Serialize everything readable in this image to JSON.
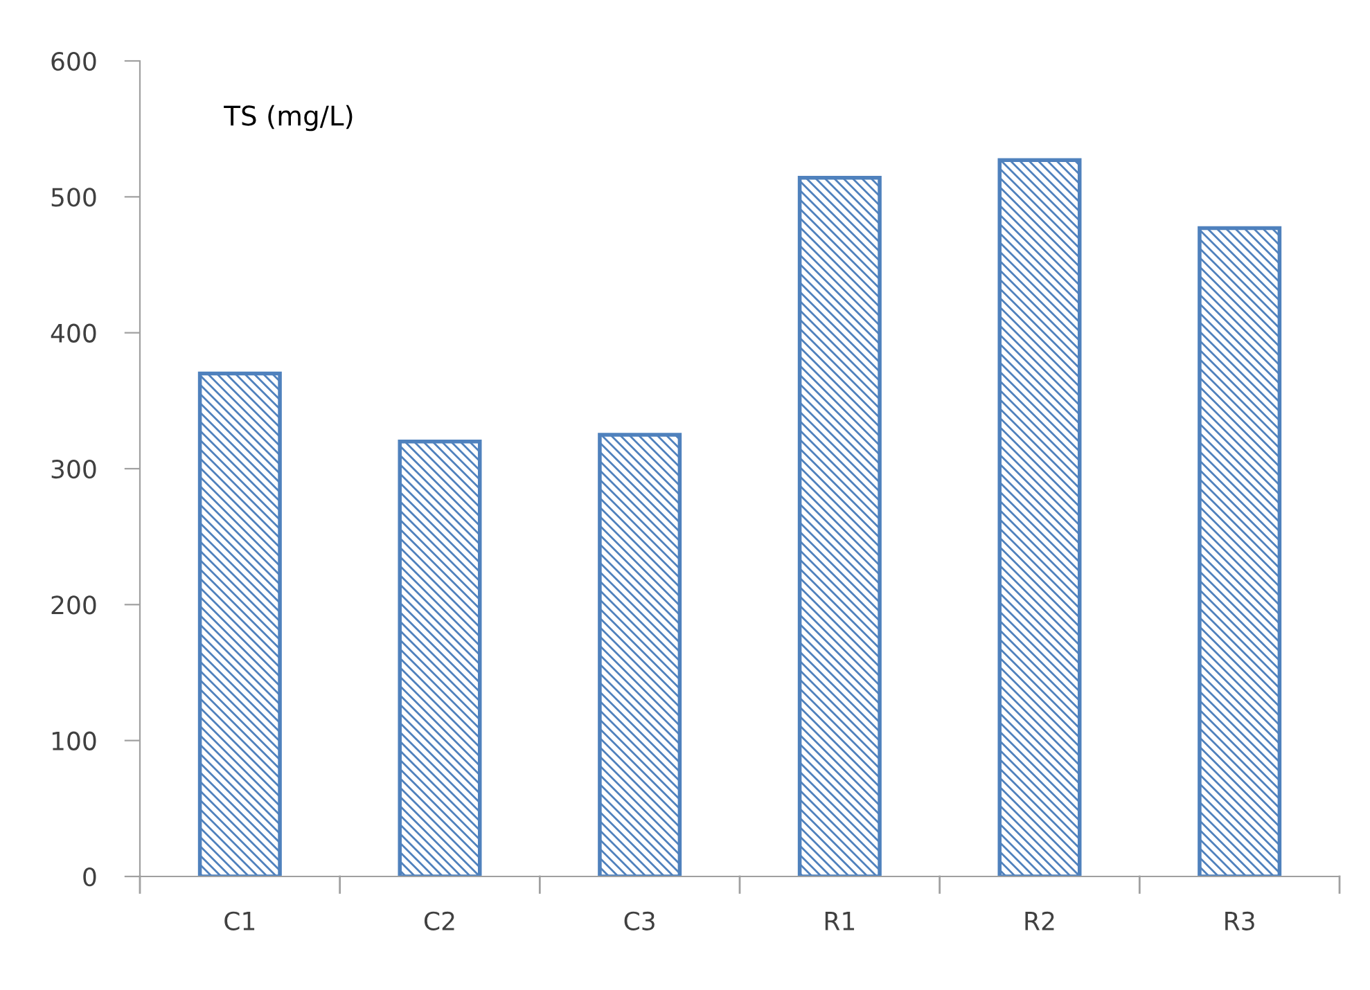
{
  "chart_data": {
    "type": "bar",
    "categories": [
      "C1",
      "C2",
      "C3",
      "R1",
      "R2",
      "R3"
    ],
    "values": [
      370,
      320,
      325,
      514,
      527,
      477
    ],
    "color": "#4f81bd",
    "ylim": [
      0,
      600
    ],
    "yticks": [
      0,
      100,
      200,
      300,
      400,
      500,
      600
    ],
    "annotations": [
      "TS (mg/L)"
    ]
  }
}
